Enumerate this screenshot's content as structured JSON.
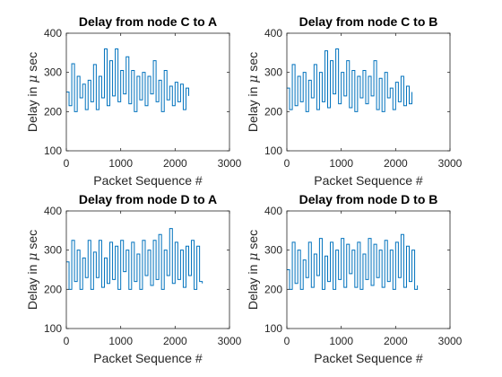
{
  "chart_data": [
    {
      "type": "line",
      "title": "Delay from node C to A",
      "xlabel": "Packet Sequence #",
      "ylabel_prefix": "Delay in ",
      "ylabel_symbol": "μ",
      "ylabel_suffix": " sec",
      "xlim": [
        0,
        3000
      ],
      "ylim": [
        100,
        400
      ],
      "xticks": [
        "0",
        "1000",
        "2000",
        "3000"
      ],
      "yticks": [
        "100",
        "200",
        "300",
        "400"
      ],
      "color": "#0072bd",
      "series": [
        {
          "x": [
            0,
            50,
            100,
            150,
            200,
            250,
            300,
            350,
            400,
            450,
            500,
            550,
            600,
            650,
            700,
            750,
            800,
            850,
            900,
            950,
            1000,
            1050,
            1100,
            1150,
            1200,
            1250,
            1300,
            1350,
            1400,
            1450,
            1500,
            1550,
            1600,
            1650,
            1700,
            1750,
            1800,
            1850,
            1900,
            1950,
            2000,
            2050,
            2100,
            2150,
            2200,
            2250
          ],
          "values": [
            250,
            215,
            322,
            200,
            290,
            235,
            270,
            205,
            280,
            225,
            320,
            205,
            290,
            235,
            360,
            215,
            330,
            240,
            360,
            225,
            305,
            245,
            340,
            220,
            305,
            200,
            290,
            230,
            300,
            215,
            290,
            245,
            330,
            225,
            280,
            200,
            305,
            230,
            265,
            215,
            275,
            225,
            270,
            205,
            260,
            240
          ]
        }
      ]
    },
    {
      "type": "line",
      "title": "Delay from node C to B",
      "xlabel": "Packet Sequence #",
      "ylabel_prefix": "Delay in ",
      "ylabel_symbol": "μ",
      "ylabel_suffix": " sec",
      "xlim": [
        0,
        3000
      ],
      "ylim": [
        100,
        400
      ],
      "xticks": [
        "0",
        "1000",
        "2000",
        "3000"
      ],
      "yticks": [
        "100",
        "200",
        "300",
        "400"
      ],
      "color": "#0072bd",
      "series": [
        {
          "x": [
            0,
            50,
            100,
            150,
            200,
            250,
            300,
            350,
            400,
            450,
            500,
            550,
            600,
            650,
            700,
            750,
            800,
            850,
            900,
            950,
            1000,
            1050,
            1100,
            1150,
            1200,
            1250,
            1300,
            1350,
            1400,
            1450,
            1500,
            1550,
            1600,
            1650,
            1700,
            1750,
            1800,
            1850,
            1900,
            1950,
            2000,
            2050,
            2100,
            2150,
            2200,
            2250,
            2300
          ],
          "values": [
            260,
            205,
            320,
            215,
            290,
            225,
            300,
            200,
            280,
            235,
            320,
            205,
            300,
            225,
            355,
            210,
            330,
            245,
            360,
            220,
            300,
            240,
            330,
            210,
            305,
            200,
            290,
            235,
            305,
            220,
            290,
            240,
            330,
            205,
            285,
            200,
            300,
            235,
            260,
            205,
            275,
            225,
            290,
            215,
            265,
            220,
            250
          ]
        }
      ]
    },
    {
      "type": "line",
      "title": "Delay from node D to A",
      "xlabel": "Packet Sequence #",
      "ylabel_prefix": "Delay in ",
      "ylabel_symbol": "μ",
      "ylabel_suffix": " sec",
      "xlim": [
        0,
        3000
      ],
      "ylim": [
        100,
        400
      ],
      "xticks": [
        "0",
        "1000",
        "2000",
        "3000"
      ],
      "yticks": [
        "100",
        "200",
        "300",
        "400"
      ],
      "color": "#0072bd",
      "series": [
        {
          "x": [
            0,
            50,
            100,
            150,
            200,
            250,
            300,
            350,
            400,
            450,
            500,
            550,
            600,
            650,
            700,
            750,
            800,
            850,
            900,
            950,
            1000,
            1050,
            1100,
            1150,
            1200,
            1250,
            1300,
            1350,
            1400,
            1450,
            1500,
            1550,
            1600,
            1650,
            1700,
            1750,
            1800,
            1850,
            1900,
            1950,
            2000,
            2050,
            2100,
            2150,
            2200,
            2250,
            2300,
            2350,
            2400,
            2450,
            2500
          ],
          "values": [
            270,
            200,
            325,
            220,
            300,
            200,
            280,
            230,
            325,
            200,
            295,
            230,
            325,
            205,
            280,
            215,
            320,
            225,
            310,
            200,
            325,
            245,
            300,
            200,
            320,
            220,
            290,
            200,
            325,
            235,
            300,
            210,
            325,
            225,
            340,
            200,
            300,
            235,
            355,
            215,
            320,
            225,
            300,
            205,
            310,
            235,
            325,
            200,
            310,
            220,
            215
          ]
        }
      ]
    },
    {
      "type": "line",
      "title": "Delay from node D to B",
      "xlabel": "Packet Sequence #",
      "ylabel_prefix": "Delay in ",
      "ylabel_symbol": "μ",
      "ylabel_suffix": " sec",
      "xlim": [
        0,
        3000
      ],
      "ylim": [
        100,
        400
      ],
      "xticks": [
        "0",
        "1000",
        "2000",
        "3000"
      ],
      "yticks": [
        "100",
        "200",
        "300",
        "400"
      ],
      "color": "#0072bd",
      "series": [
        {
          "x": [
            0,
            50,
            100,
            150,
            200,
            250,
            300,
            350,
            400,
            450,
            500,
            550,
            600,
            650,
            700,
            750,
            800,
            850,
            900,
            950,
            1000,
            1050,
            1100,
            1150,
            1200,
            1250,
            1300,
            1350,
            1400,
            1450,
            1500,
            1550,
            1600,
            1650,
            1700,
            1750,
            1800,
            1850,
            1900,
            1950,
            2000,
            2050,
            2100,
            2150,
            2200,
            2250,
            2300,
            2350,
            2400
          ],
          "values": [
            250,
            200,
            320,
            215,
            300,
            200,
            275,
            230,
            320,
            205,
            290,
            235,
            330,
            200,
            285,
            220,
            320,
            200,
            300,
            225,
            330,
            205,
            315,
            240,
            300,
            205,
            320,
            200,
            290,
            225,
            330,
            210,
            315,
            230,
            300,
            205,
            325,
            220,
            300,
            200,
            320,
            230,
            340,
            205,
            310,
            220,
            300,
            200,
            210
          ]
        }
      ]
    }
  ]
}
